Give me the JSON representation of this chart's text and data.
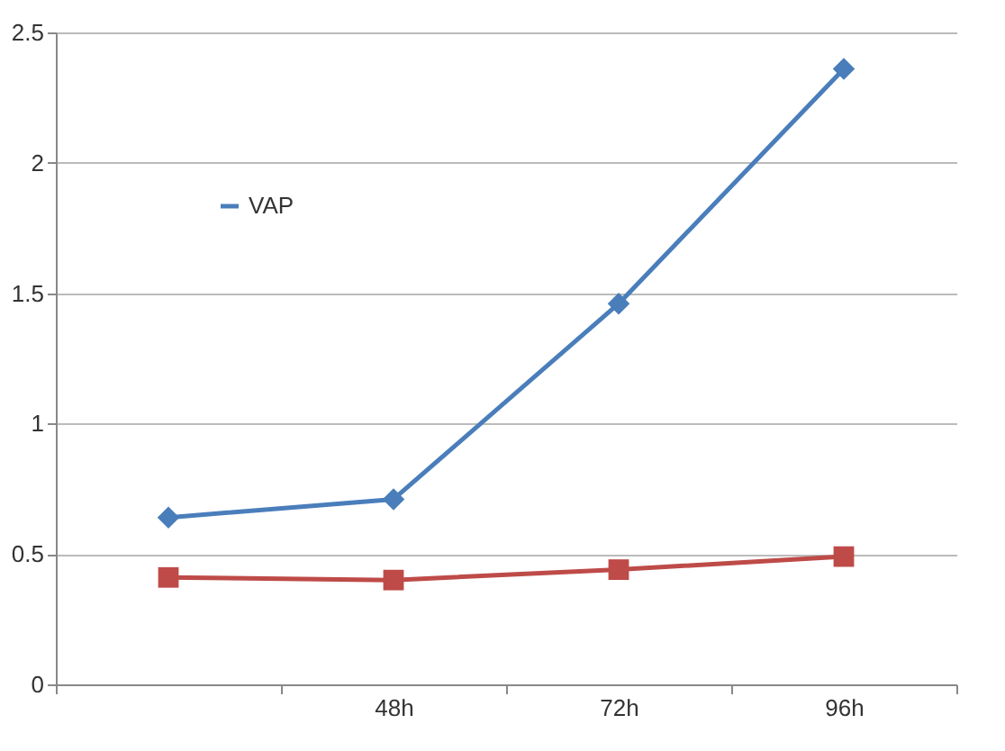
{
  "chart_data": {
    "type": "line",
    "categories": [
      null,
      "48h",
      "72h",
      "96h"
    ],
    "series": [
      {
        "name": "VAP",
        "color": "#4a7ebb",
        "marker": "diamond",
        "values": [
          0.64,
          0.71,
          1.46,
          2.36
        ]
      },
      {
        "color": "#be4b48",
        "marker": "square",
        "values": [
          0.41,
          0.4,
          0.44,
          0.49
        ]
      }
    ],
    "ylim": [
      0,
      2.5
    ],
    "yticks": [
      0,
      0.5,
      1,
      1.5,
      2,
      2.5
    ],
    "grid": "y",
    "legend": "top left",
    "line_style": "solid"
  }
}
